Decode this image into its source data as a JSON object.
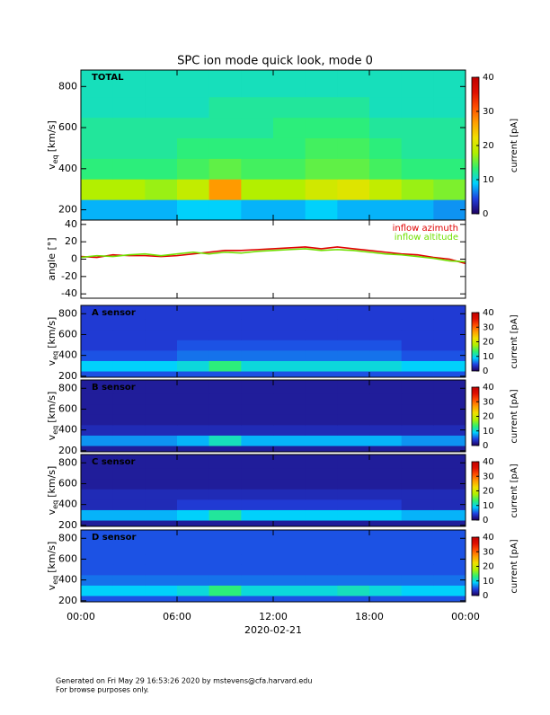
{
  "title": "SPC ion mode quick look, mode 0",
  "footer": [
    "Generated on Fri May 29 16:53:26 2020 by mstevens@cfa.harvard.edu",
    "For browse purposes only."
  ],
  "colormap": [
    "#200060",
    "#2040e0",
    "#00d0ff",
    "#30f070",
    "#b0f000",
    "#f0e000",
    "#ffa000",
    "#ff5000",
    "#e01000",
    "#c00000"
  ],
  "chart_data": [
    {
      "type": "heatmap",
      "label": "TOTAL",
      "ylabel": {
        "main": "v",
        "sub": "eq",
        "unit": "[km/s]"
      },
      "xlim": [
        0,
        24
      ],
      "ylim": [
        150,
        880
      ],
      "yticks": [
        200,
        400,
        600,
        800
      ],
      "xbins": [
        0,
        2,
        4,
        6,
        8,
        10,
        12,
        14,
        16,
        18,
        20,
        22,
        24
      ],
      "ybins": [
        150,
        250,
        350,
        450,
        550,
        650,
        750,
        880
      ],
      "z": [
        [
          8,
          8,
          8,
          9,
          9,
          8,
          8,
          9,
          8,
          8,
          8,
          7
        ],
        [
          18,
          18,
          17,
          19,
          27,
          18,
          18,
          20,
          21,
          19,
          17,
          16
        ],
        [
          13,
          13,
          13,
          14,
          15,
          14,
          14,
          15,
          15,
          14,
          13,
          13
        ],
        [
          12,
          12,
          12,
          13,
          13,
          13,
          13,
          14,
          14,
          13,
          12,
          12
        ],
        [
          12,
          12,
          12,
          12,
          12,
          12,
          13,
          13,
          13,
          12,
          12,
          12
        ],
        [
          11,
          11,
          11,
          11,
          12,
          12,
          12,
          12,
          12,
          11,
          11,
          11
        ],
        [
          11,
          11,
          11,
          11,
          11,
          11,
          11,
          11,
          11,
          11,
          11,
          11
        ]
      ],
      "colorbar": {
        "label": "current [pA]",
        "lim": [
          0,
          40
        ],
        "ticks": [
          0,
          10,
          20,
          30,
          40
        ]
      }
    },
    {
      "type": "line",
      "ylabel": "angle [°]",
      "xlim": [
        0,
        24
      ],
      "ylim": [
        -45,
        45
      ],
      "yticks": [
        -40,
        -20,
        0,
        20,
        40
      ],
      "legend": "upper right",
      "x": [
        0,
        1,
        2,
        3,
        4,
        5,
        6,
        7,
        8,
        9,
        10,
        11,
        12,
        13,
        14,
        15,
        16,
        17,
        18,
        19,
        20,
        21,
        22,
        23,
        24
      ],
      "series": [
        {
          "name": "inflow azimuth",
          "color": "#e00000",
          "values": [
            3,
            2,
            5,
            4,
            4,
            3,
            4,
            6,
            8,
            10,
            10,
            11,
            12,
            13,
            14,
            12,
            14,
            12,
            10,
            8,
            6,
            5,
            2,
            0,
            -5
          ]
        },
        {
          "name": "inflow altitude",
          "color": "#70e000",
          "values": [
            2,
            4,
            3,
            5,
            6,
            4,
            6,
            8,
            6,
            8,
            7,
            9,
            10,
            11,
            12,
            10,
            11,
            10,
            8,
            6,
            5,
            3,
            1,
            -2,
            -3
          ]
        }
      ]
    },
    {
      "type": "heatmap",
      "label": "A sensor",
      "ylabel": {
        "main": "v",
        "sub": "eq",
        "unit": "[km/s]"
      },
      "xlim": [
        0,
        24
      ],
      "ylim": [
        190,
        880
      ],
      "yticks": [
        200,
        400,
        600,
        800
      ],
      "xbins": [
        0,
        2,
        4,
        6,
        8,
        10,
        12,
        14,
        16,
        18,
        20,
        22,
        24
      ],
      "ybins": [
        190,
        250,
        350,
        450,
        550,
        650,
        750,
        880
      ],
      "z": [
        [
          5,
          5,
          5,
          5,
          5,
          5,
          5,
          5,
          5,
          5,
          5,
          5
        ],
        [
          9,
          9,
          9,
          10,
          13,
          10,
          10,
          10,
          10,
          10,
          9,
          9
        ],
        [
          5,
          5,
          5,
          6,
          6,
          6,
          6,
          6,
          6,
          6,
          5,
          5
        ],
        [
          4,
          4,
          4,
          5,
          5,
          5,
          5,
          5,
          5,
          5,
          4,
          4
        ],
        [
          4,
          4,
          4,
          4,
          4,
          4,
          4,
          4,
          4,
          4,
          4,
          4
        ],
        [
          4,
          4,
          4,
          4,
          4,
          4,
          4,
          4,
          4,
          4,
          4,
          4
        ],
        [
          4,
          4,
          4,
          4,
          4,
          4,
          4,
          4,
          4,
          4,
          4,
          4
        ]
      ],
      "colorbar": {
        "label": "current [pA]",
        "lim": [
          0,
          40
        ],
        "ticks": [
          0,
          10,
          20,
          30,
          40
        ]
      }
    },
    {
      "type": "heatmap",
      "label": "B sensor",
      "ylabel": {
        "main": "v",
        "sub": "eq",
        "unit": "[km/s]"
      },
      "xlim": [
        0,
        24
      ],
      "ylim": [
        190,
        880
      ],
      "yticks": [
        200,
        400,
        600,
        800
      ],
      "xbins": [
        0,
        2,
        4,
        6,
        8,
        10,
        12,
        14,
        16,
        18,
        20,
        22,
        24
      ],
      "ybins": [
        190,
        250,
        350,
        450,
        550,
        650,
        750,
        880
      ],
      "z": [
        [
          2,
          2,
          2,
          2,
          2,
          2,
          2,
          2,
          2,
          2,
          2,
          2
        ],
        [
          7,
          7,
          7,
          8,
          11,
          8,
          8,
          8,
          8,
          8,
          7,
          7
        ],
        [
          3,
          3,
          3,
          3,
          3,
          3,
          3,
          3,
          3,
          3,
          3,
          3
        ],
        [
          2,
          2,
          2,
          2,
          2,
          2,
          2,
          2,
          2,
          2,
          2,
          2
        ],
        [
          2,
          2,
          2,
          2,
          2,
          2,
          2,
          2,
          2,
          2,
          2,
          2
        ],
        [
          2,
          2,
          2,
          2,
          2,
          2,
          2,
          2,
          2,
          2,
          2,
          2
        ],
        [
          2,
          2,
          2,
          2,
          2,
          2,
          2,
          2,
          2,
          2,
          2,
          2
        ]
      ],
      "colorbar": {
        "label": "current [pA]",
        "lim": [
          0,
          40
        ],
        "ticks": [
          0,
          10,
          20,
          30,
          40
        ]
      }
    },
    {
      "type": "heatmap",
      "label": "C sensor",
      "ylabel": {
        "main": "v",
        "sub": "eq",
        "unit": "[km/s]"
      },
      "xlim": [
        0,
        24
      ],
      "ylim": [
        190,
        880
      ],
      "yticks": [
        200,
        400,
        600,
        800
      ],
      "xbins": [
        0,
        2,
        4,
        6,
        8,
        10,
        12,
        14,
        16,
        18,
        20,
        22,
        24
      ],
      "ybins": [
        190,
        250,
        350,
        450,
        550,
        650,
        750,
        880
      ],
      "z": [
        [
          2,
          2,
          2,
          2,
          2,
          2,
          2,
          2,
          2,
          2,
          2,
          2
        ],
        [
          8,
          8,
          8,
          9,
          12,
          9,
          9,
          9,
          9,
          9,
          8,
          8
        ],
        [
          3,
          3,
          3,
          4,
          4,
          4,
          4,
          4,
          4,
          4,
          3,
          3
        ],
        [
          3,
          3,
          3,
          3,
          3,
          3,
          3,
          3,
          3,
          3,
          3,
          3
        ],
        [
          2,
          2,
          2,
          2,
          2,
          2,
          2,
          2,
          2,
          2,
          2,
          2
        ],
        [
          2,
          2,
          2,
          2,
          2,
          2,
          2,
          2,
          2,
          2,
          2,
          2
        ],
        [
          2,
          2,
          2,
          2,
          2,
          2,
          2,
          2,
          2,
          2,
          2,
          2
        ]
      ],
      "colorbar": {
        "label": "current [pA]",
        "lim": [
          0,
          40
        ],
        "ticks": [
          0,
          10,
          20,
          30,
          40
        ]
      }
    },
    {
      "type": "heatmap",
      "label": "D sensor",
      "ylabel": {
        "main": "v",
        "sub": "eq",
        "unit": "[km/s]"
      },
      "xlim": [
        0,
        24
      ],
      "ylim": [
        190,
        880
      ],
      "yticks": [
        200,
        400,
        600,
        800
      ],
      "xticks": [
        {
          "value": 0,
          "label": "00:00"
        },
        {
          "value": 6,
          "label": "06:00"
        },
        {
          "value": 12,
          "label": "12:00"
        },
        {
          "value": 18,
          "label": "18:00"
        },
        {
          "value": 24,
          "label": "00:00"
        }
      ],
      "xlabel": "2020-02-21",
      "xbins": [
        0,
        2,
        4,
        6,
        8,
        10,
        12,
        14,
        16,
        18,
        20,
        22,
        24
      ],
      "ybins": [
        190,
        250,
        350,
        450,
        550,
        650,
        750,
        880
      ],
      "z": [
        [
          5,
          5,
          5,
          5,
          5,
          5,
          5,
          5,
          5,
          5,
          5,
          5
        ],
        [
          9,
          9,
          9,
          10,
          13,
          10,
          10,
          10,
          11,
          10,
          9,
          9
        ],
        [
          6,
          6,
          6,
          6,
          6,
          6,
          6,
          6,
          6,
          6,
          6,
          6
        ],
        [
          5,
          5,
          5,
          5,
          5,
          5,
          5,
          5,
          5,
          5,
          5,
          5
        ],
        [
          5,
          5,
          5,
          5,
          5,
          5,
          5,
          5,
          5,
          5,
          5,
          5
        ],
        [
          5,
          5,
          5,
          5,
          5,
          5,
          5,
          5,
          5,
          5,
          5,
          5
        ],
        [
          5,
          5,
          5,
          5,
          5,
          5,
          5,
          5,
          5,
          5,
          5,
          5
        ]
      ],
      "colorbar": {
        "label": "current [pA]",
        "lim": [
          0,
          40
        ],
        "ticks": [
          0,
          10,
          20,
          30,
          40
        ]
      }
    }
  ]
}
